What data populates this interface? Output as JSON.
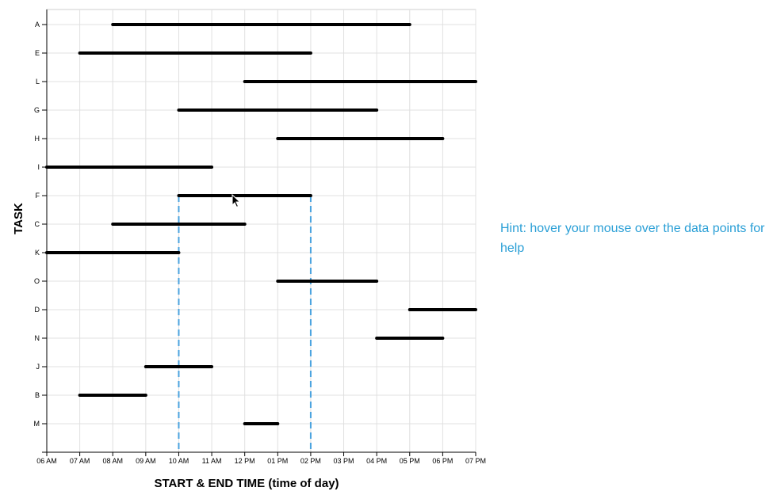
{
  "chart_data": {
    "type": "gantt",
    "xlabel": "START & END TIME (time of day)",
    "ylabel": "TASK",
    "x_ticks": [
      "06 AM",
      "07 AM",
      "08 AM",
      "09 AM",
      "10 AM",
      "11 AM",
      "12 PM",
      "01 PM",
      "02 PM",
      "03 PM",
      "04 PM",
      "05 PM",
      "06 PM",
      "07 PM"
    ],
    "xlim": [
      6,
      19
    ],
    "grid": true,
    "categories": [
      "A",
      "E",
      "L",
      "G",
      "H",
      "I",
      "F",
      "C",
      "K",
      "O",
      "D",
      "N",
      "J",
      "B",
      "M"
    ],
    "tasks": [
      {
        "task": "A",
        "start": 8,
        "end": 17
      },
      {
        "task": "E",
        "start": 7,
        "end": 14
      },
      {
        "task": "L",
        "start": 12,
        "end": 19
      },
      {
        "task": "G",
        "start": 10,
        "end": 16
      },
      {
        "task": "H",
        "start": 13,
        "end": 18
      },
      {
        "task": "I",
        "start": 6,
        "end": 11
      },
      {
        "task": "F",
        "start": 10,
        "end": 14
      },
      {
        "task": "C",
        "start": 8,
        "end": 12
      },
      {
        "task": "K",
        "start": 6,
        "end": 10
      },
      {
        "task": "O",
        "start": 13,
        "end": 16
      },
      {
        "task": "D",
        "start": 17,
        "end": 19
      },
      {
        "task": "N",
        "start": 16,
        "end": 18
      },
      {
        "task": "J",
        "start": 9,
        "end": 11
      },
      {
        "task": "B",
        "start": 7,
        "end": 9
      },
      {
        "task": "M",
        "start": 12,
        "end": 13
      }
    ],
    "hover_task": "F",
    "guide_color": "#4aa3df",
    "bar_color": "#000000",
    "grid_color": "#e0e0e0"
  },
  "hint": {
    "text": "Hint: hover your mouse over the data points for help",
    "color": "#2a9fd6"
  }
}
